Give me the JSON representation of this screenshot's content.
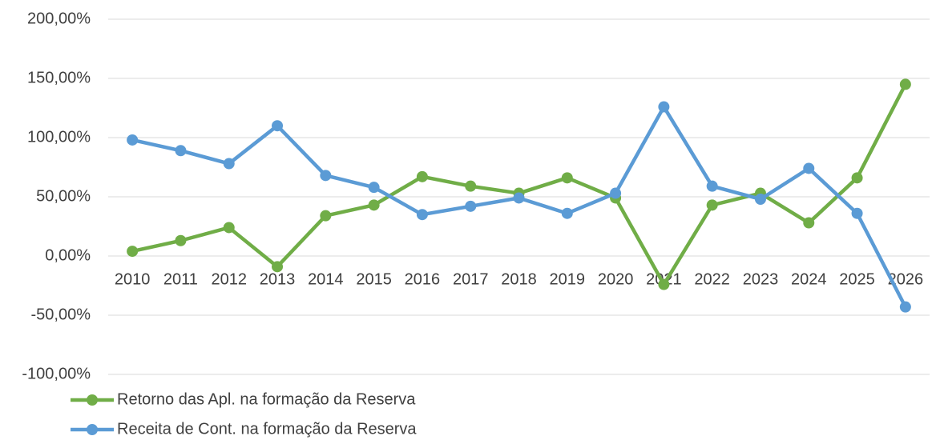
{
  "chart_data": {
    "type": "line",
    "categories": [
      "2010",
      "2011",
      "2012",
      "2013",
      "2014",
      "2015",
      "2016",
      "2017",
      "2018",
      "2019",
      "2020",
      "2021",
      "2022",
      "2023",
      "2024",
      "2025",
      "2026"
    ],
    "series": [
      {
        "name": "Retorno das Apl. na formação da Reserva",
        "color": "#70ad47",
        "values": [
          4,
          13,
          24,
          -9,
          34,
          43,
          67,
          59,
          53,
          66,
          49,
          -24,
          43,
          53,
          28,
          66,
          145
        ]
      },
      {
        "name": "Receita de Cont. na formação da Reserva",
        "color": "#5b9bd5",
        "values": [
          98,
          89,
          78,
          110,
          68,
          58,
          35,
          42,
          49,
          36,
          53,
          126,
          59,
          48,
          74,
          36,
          -43
        ]
      }
    ],
    "ylim": [
      -100,
      200
    ],
    "yticks": [
      {
        "value": -100,
        "label": "-100,00%"
      },
      {
        "value": -50,
        "label": "-50,00%"
      },
      {
        "value": 0,
        "label": "0,00%"
      },
      {
        "value": 50,
        "label": "50,00%"
      },
      {
        "value": 100,
        "label": "100,00%"
      },
      {
        "value": 150,
        "label": "150,00%"
      },
      {
        "value": 200,
        "label": "200,00%"
      }
    ],
    "grid": true,
    "legend": "bottom-left"
  }
}
